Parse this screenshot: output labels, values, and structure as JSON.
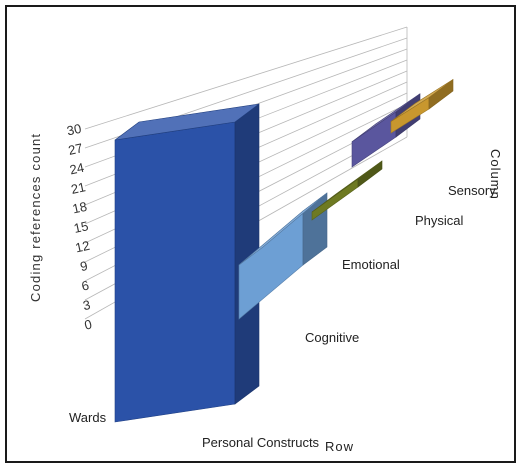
{
  "chart_data": {
    "type": "bar",
    "categories": [
      "Wards",
      "Personal Constructs",
      "Cognitive",
      "Emotional",
      "Physical",
      "Sensory"
    ],
    "values": [
      30,
      0,
      15,
      4,
      9,
      5
    ],
    "colors": [
      "#2b52a8",
      "#2b52a8",
      "#6d9fd4",
      "#6e7a22",
      "#5a569e",
      "#c8972e"
    ],
    "ylabel": "Coding references count",
    "row_label": "Row",
    "column_label": "Column",
    "yticks": [
      0,
      3,
      6,
      9,
      12,
      15,
      18,
      21,
      24,
      27,
      30
    ],
    "ylim": [
      0,
      30
    ]
  }
}
